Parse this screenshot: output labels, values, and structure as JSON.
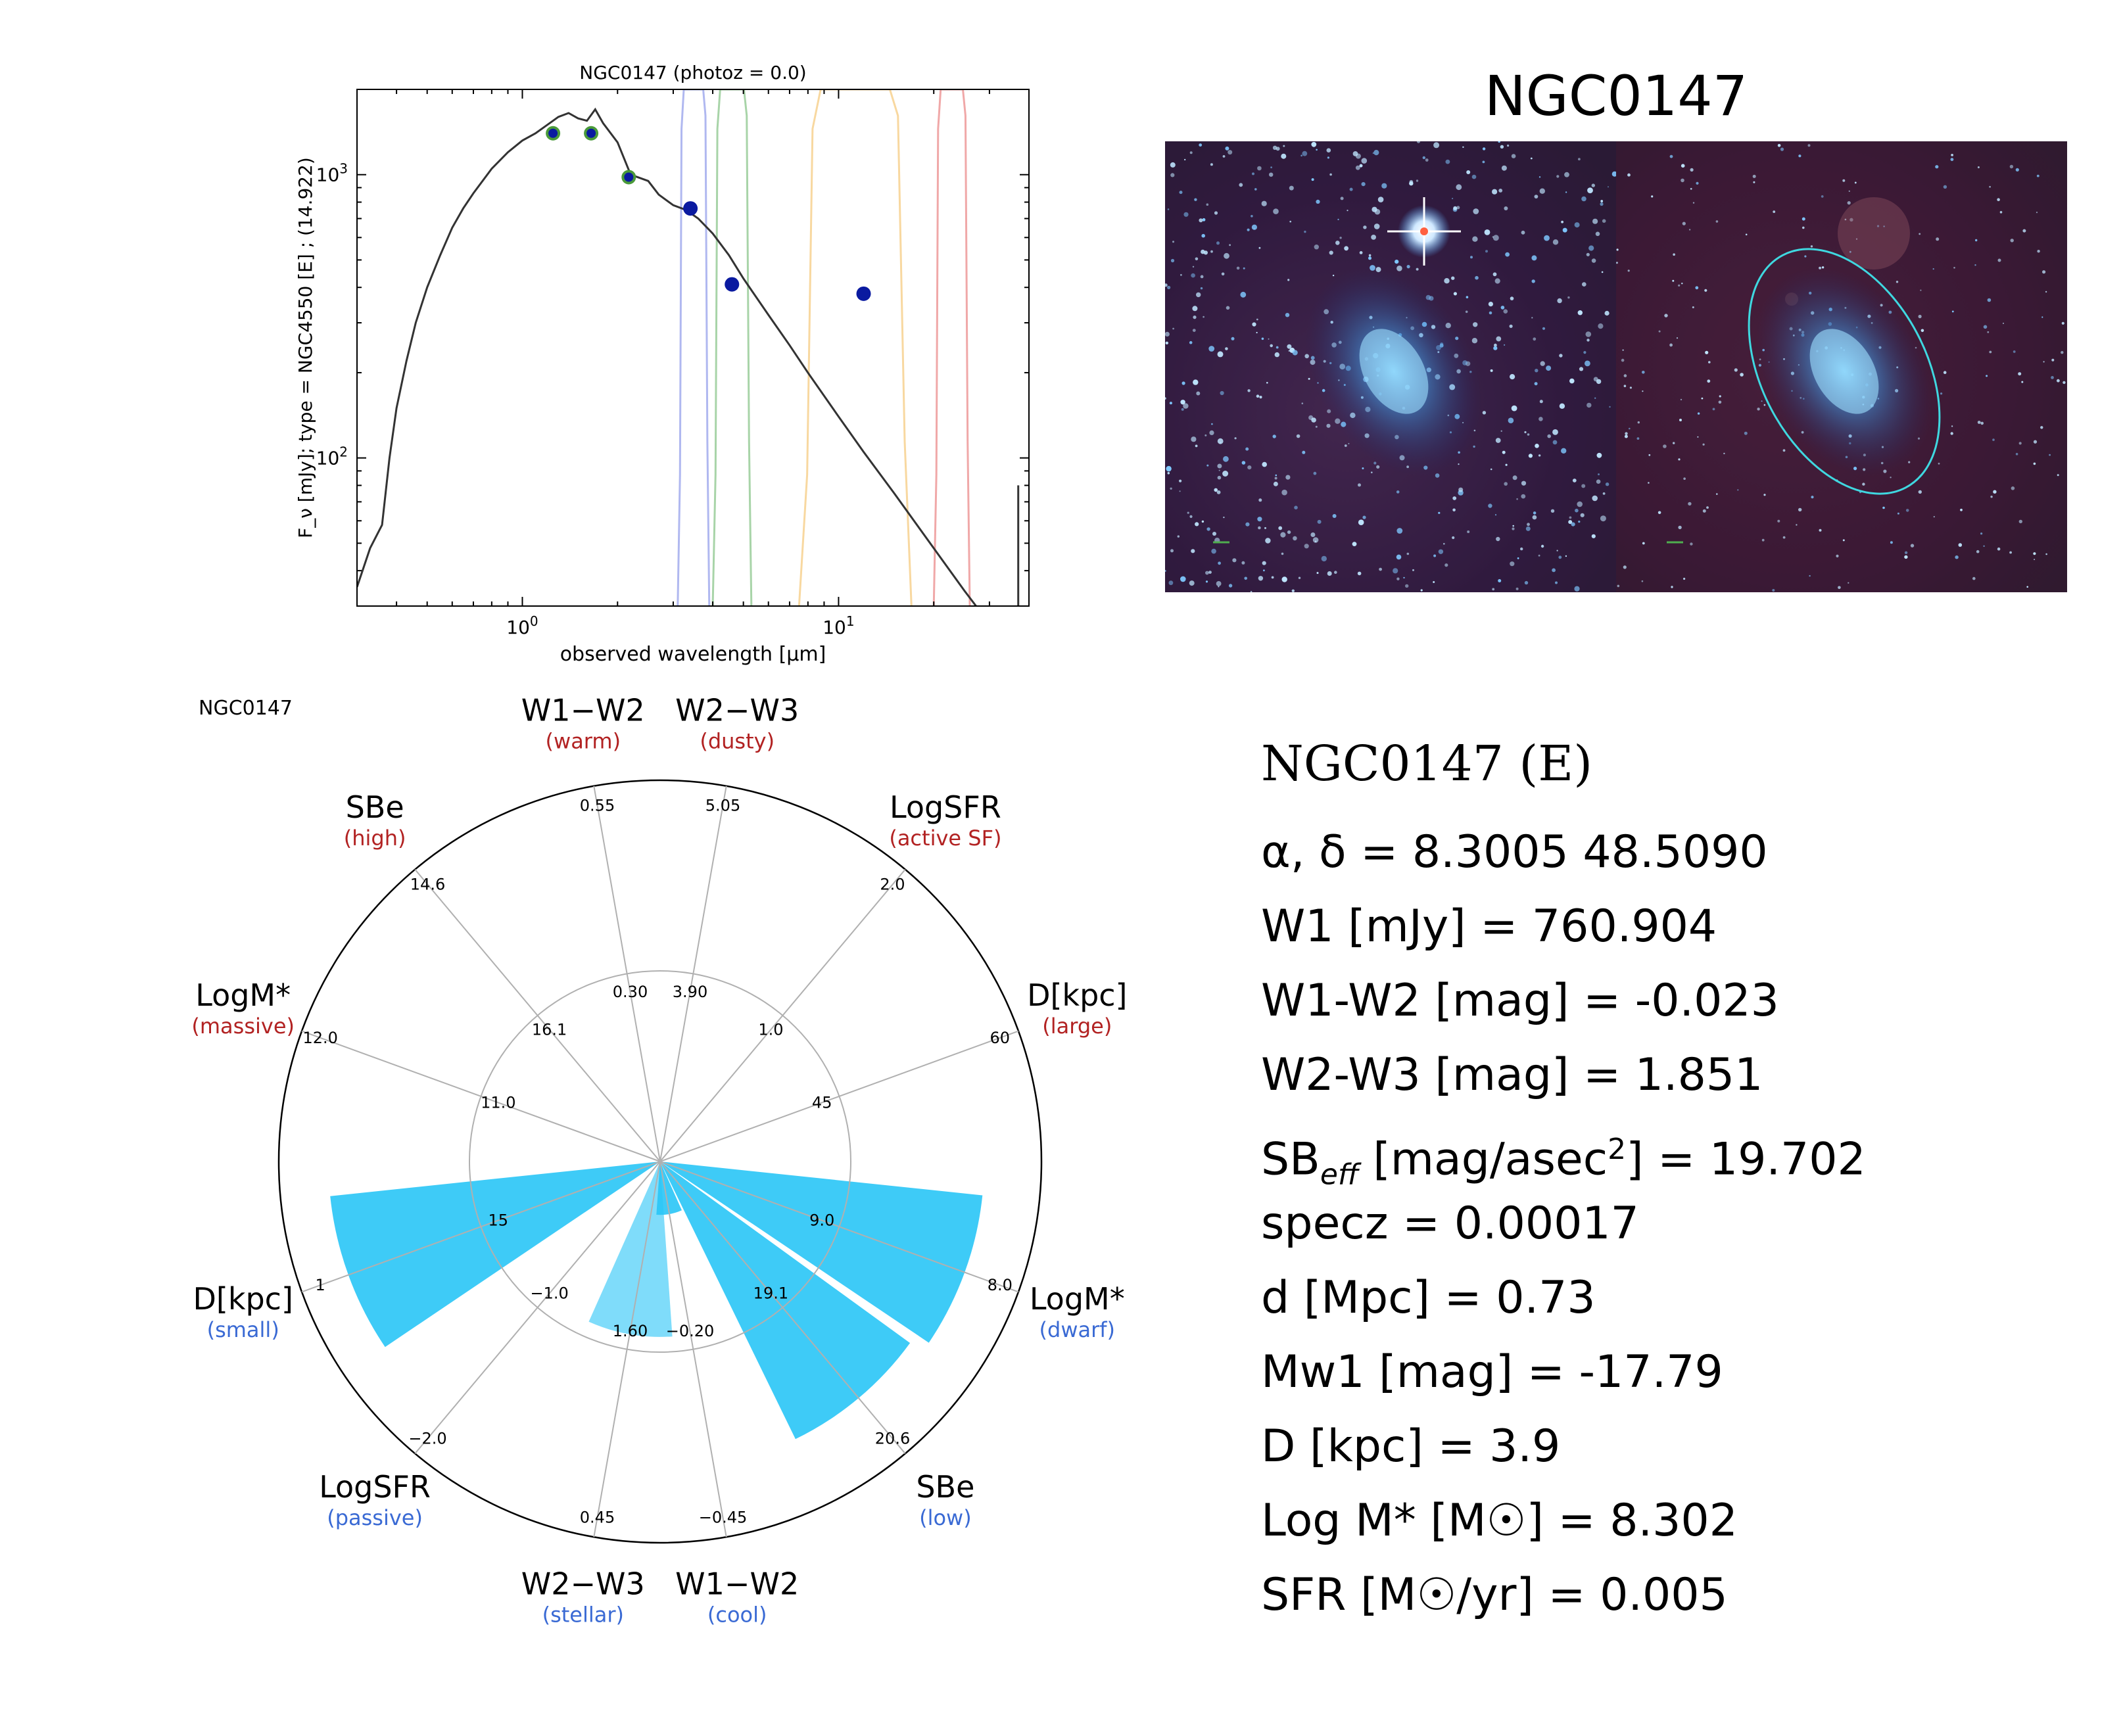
{
  "sed_chart": {
    "type": "line",
    "title": "NGC0147 (photoz = 0.0)",
    "xlabel": "observed wavelength [μm]",
    "ylabel": "F_ν [mJy];  type = NGC4550 [E] ; (14.922)",
    "xscale": "log",
    "yscale": "log",
    "xlim": [
      0.3,
      40
    ],
    "ylim": [
      30,
      2000
    ],
    "x_ticks": [
      {
        "value": 1,
        "label": "10^0"
      },
      {
        "value": 10,
        "label": "10^1"
      }
    ],
    "y_ticks": [
      {
        "value": 100,
        "label": "10^2"
      },
      {
        "value": 1000,
        "label": "10^3"
      }
    ],
    "template_curve": {
      "x": [
        0.3,
        0.33,
        0.36,
        0.38,
        0.4,
        0.43,
        0.46,
        0.5,
        0.55,
        0.6,
        0.65,
        0.7,
        0.8,
        0.9,
        1.0,
        1.1,
        1.2,
        1.3,
        1.4,
        1.5,
        1.6,
        1.7,
        1.8,
        2.0,
        2.2,
        2.5,
        2.7,
        3.0,
        3.3,
        3.6,
        4.0,
        4.5,
        5.0,
        6.0,
        7.0,
        8.0,
        10.0,
        12.0,
        15.0,
        20.0,
        25.0,
        30.0
      ],
      "y": [
        35,
        48,
        58,
        100,
        150,
        220,
        300,
        400,
        520,
        650,
        760,
        860,
        1050,
        1200,
        1320,
        1400,
        1500,
        1600,
        1650,
        1580,
        1550,
        1700,
        1520,
        1300,
        1000,
        950,
        850,
        780,
        750,
        700,
        620,
        520,
        430,
        320,
        250,
        200,
        140,
        105,
        75,
        48,
        34,
        26
      ]
    },
    "photometry": {
      "x": [
        1.25,
        1.65,
        2.17,
        3.4,
        4.6,
        12.0
      ],
      "y": [
        1400,
        1400,
        980,
        760,
        410,
        380
      ]
    },
    "filter_curves": [
      {
        "name": "W1",
        "color": "#b0b8f0",
        "lo": 3.1,
        "hi": 3.9
      },
      {
        "name": "W2",
        "color": "#a8d4a8",
        "lo": 4.0,
        "hi": 5.3
      },
      {
        "name": "W3",
        "color": "#f8d8a0",
        "lo": 7.5,
        "hi": 17.0
      },
      {
        "name": "W4",
        "color": "#f0a8a8",
        "lo": 20.0,
        "hi": 26.0
      }
    ]
  },
  "image_panel": {
    "title": "NGC0147"
  },
  "radar_chart": {
    "type": "bar",
    "corner_label": "NGC0147",
    "axes": [
      {
        "angle_deg": 100,
        "name": "W1−W2",
        "qualifier": "(warm)",
        "qual_color": "#b22222",
        "outer_tick": "0.55",
        "mid_tick": "0.30"
      },
      {
        "angle_deg": 80,
        "name": "W2−W3",
        "qualifier": "(dusty)",
        "qual_color": "#b22222",
        "outer_tick": "5.05",
        "mid_tick": "3.90"
      },
      {
        "angle_deg": 130,
        "name": "SBe",
        "qualifier": "(high)",
        "qual_color": "#b22222",
        "outer_tick": "14.6",
        "mid_tick": "16.1"
      },
      {
        "angle_deg": 50,
        "name": "LogSFR",
        "qualifier": "(active SF)",
        "qual_color": "#b22222",
        "outer_tick": "2.0",
        "mid_tick": "1.0"
      },
      {
        "angle_deg": 160,
        "name": "LogM*",
        "qualifier": "(massive)",
        "qual_color": "#b22222",
        "outer_tick": "12.0",
        "mid_tick": "11.0"
      },
      {
        "angle_deg": 20,
        "name": "D[kpc]",
        "qualifier": "(large)",
        "qual_color": "#b22222",
        "outer_tick": "60",
        "mid_tick": "45"
      },
      {
        "angle_deg": 200,
        "name": "D[kpc]",
        "qualifier": "(small)",
        "qual_color": "#3a6ad4",
        "outer_tick": "1",
        "mid_tick": "15"
      },
      {
        "angle_deg": 340,
        "name": "LogM*",
        "qualifier": "(dwarf)",
        "qual_color": "#3a6ad4",
        "outer_tick": "8.0",
        "mid_tick": "9.0"
      },
      {
        "angle_deg": 230,
        "name": "LogSFR",
        "qualifier": "(passive)",
        "qual_color": "#3a6ad4",
        "outer_tick": "−2.0",
        "mid_tick": "−1.0"
      },
      {
        "angle_deg": 310,
        "name": "SBe",
        "qualifier": "(low)",
        "qual_color": "#3a6ad4",
        "outer_tick": "20.6",
        "mid_tick": "19.1"
      },
      {
        "angle_deg": 260,
        "name": "W2−W3",
        "qualifier": "(stellar)",
        "qual_color": "#3a6ad4",
        "outer_tick": "0.45",
        "mid_tick": "1.60"
      },
      {
        "angle_deg": 280,
        "name": "W1−W2",
        "qualifier": "(cool)",
        "qual_color": "#3a6ad4",
        "outer_tick": "−0.45",
        "mid_tick": "−0.20"
      }
    ],
    "bars": [
      {
        "axis": "D[kpc]",
        "angle_deg": 200,
        "value": 0.87,
        "color": "#29c5f6",
        "opacity": 0.9
      },
      {
        "axis": "LogM*",
        "angle_deg": 340,
        "value": 0.85,
        "color": "#29c5f6",
        "opacity": 0.9
      },
      {
        "axis": "SBe",
        "angle_deg": 310,
        "value": 0.81,
        "color": "#29c5f6",
        "opacity": 0.9
      },
      {
        "axis": "W2−W3",
        "angle_deg": 260,
        "value": 0.46,
        "color": "#29c5f6",
        "opacity": 0.6
      },
      {
        "axis": "W1−W2",
        "angle_deg": 280,
        "value": 0.14,
        "color": "#29c5f6",
        "opacity": 0.9
      }
    ]
  },
  "info": {
    "title": "NGC0147  (E)",
    "coords": "α, δ = 8.3005 48.5090",
    "w1": "W1 [mJy] = 760.904",
    "w1w2": "W1-W2 [mag] = -0.023",
    "w2w3": "W2-W3 [mag] = 1.851",
    "sb_prefix": "SB",
    "sb_sub": "eff",
    "sb_mid": " [mag/asec",
    "sb_sup": "2",
    "sb_suffix": "] = 19.702",
    "specz": "specz = 0.00017",
    "dist": "d [Mpc] = 0.73",
    "mw1": "Mw1 [mag] = -17.79",
    "dkpc": "D [kpc] = 3.9",
    "logm": "Log M* [M☉] = 8.302",
    "sfr": "SFR [M☉/yr] = 0.005"
  },
  "colors": {
    "template": "#333333",
    "photometry_fill": "#0a1aa0",
    "photometry_ring": "#4a9a3a",
    "ellipse": "#3fd8e0",
    "radar_grid": "#b0b0b0"
  }
}
